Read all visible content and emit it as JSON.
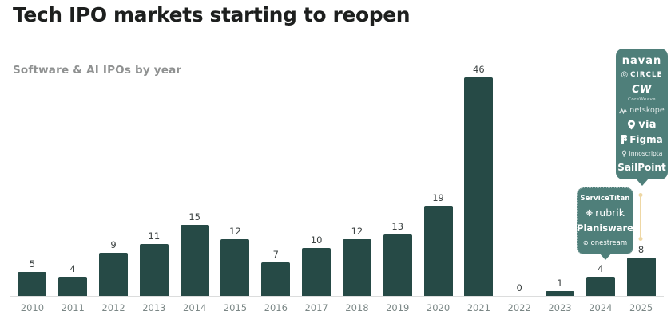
{
  "title": "Tech IPO markets starting to reopen",
  "subtitle": "Software & AI IPOs by year",
  "chart_data": {
    "type": "bar",
    "title": "Tech IPO markets starting to reopen",
    "subtitle": "Software & AI IPOs by year",
    "categories": [
      "2010",
      "2011",
      "2012",
      "2013",
      "2014",
      "2015",
      "2016",
      "2017",
      "2018",
      "2019",
      "2020",
      "2021",
      "2022",
      "2023",
      "2024",
      "2025"
    ],
    "values": [
      5,
      4,
      9,
      11,
      15,
      12,
      7,
      10,
      12,
      13,
      19,
      46,
      0,
      1,
      4,
      8
    ],
    "xlabel": "",
    "ylabel": "",
    "ylim": [
      0,
      50
    ],
    "grid": false,
    "legend": "none",
    "bar_color": "#264a46",
    "value_labels_shown": true
  },
  "callout_2024": {
    "target_year": "2024",
    "items": [
      {
        "icon": "servicetitan-logo",
        "label": "ServiceTitan"
      },
      {
        "icon": "rubrik-logo",
        "label": "rubrik"
      },
      {
        "icon": "planisware-logo",
        "label": "Planisware"
      },
      {
        "icon": "onestream-logo",
        "label": "onestream"
      }
    ]
  },
  "callout_2025": {
    "target_year": "2025",
    "items": [
      {
        "icon": "navan-logo",
        "label": "navan"
      },
      {
        "icon": "circle-logo",
        "label": "CIRCLE"
      },
      {
        "icon": "coreweave-logo",
        "label": "CW",
        "sublabel": "CoreWeave"
      },
      {
        "icon": "netskope-logo",
        "label": "netskope"
      },
      {
        "icon": "via-logo",
        "label": "via"
      },
      {
        "icon": "figma-logo",
        "label": "Figma"
      },
      {
        "icon": "innoscripta-logo",
        "label": "innoscripta"
      },
      {
        "icon": "sailpoint-logo",
        "label": "SailPoint"
      }
    ]
  },
  "colors": {
    "background": "#ffffff",
    "bar": "#264a46",
    "callout_bg": "#4f7f7a",
    "connector": "#eed7a4",
    "title_text": "#1d1f1e",
    "subtitle_text": "#8f9191",
    "axis_line": "#dcdddd",
    "year_label": "#7b8786",
    "value_label": "#3e4444"
  }
}
